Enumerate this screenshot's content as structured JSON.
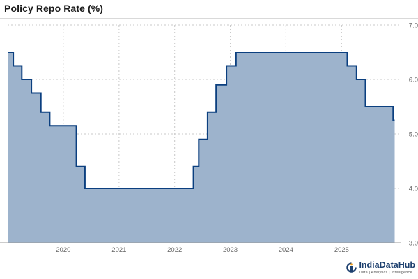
{
  "title": "Policy Repo Rate (%)",
  "brand": {
    "name": "IndiaDataHub",
    "tagline": "Data | Analytics | Intelligence"
  },
  "colors": {
    "line": "#0b3f7f",
    "fill": "#9db3cc",
    "grid": "#c8c8c8",
    "text": "#666666"
  },
  "chart_data": {
    "type": "area",
    "title": "Policy Repo Rate (%)",
    "xlabel": "",
    "ylabel": "",
    "xlim": [
      "2019-01-01",
      "2025-12-31"
    ],
    "ylim": [
      3.0,
      7.0
    ],
    "x_ticks": [
      "2020",
      "2021",
      "2022",
      "2023",
      "2024",
      "2025"
    ],
    "y_ticks": [
      "3.0",
      "4.0",
      "5.0",
      "6.0",
      "7.0"
    ],
    "y_axis_side": "right",
    "grid": true,
    "legend": "none",
    "series": [
      {
        "step": "after",
        "x": [
          "2019-01-01",
          "2019-02-07",
          "2019-04-04",
          "2019-06-06",
          "2019-08-07",
          "2019-10-04",
          "2020-03-27",
          "2020-05-22",
          "2022-05-04",
          "2022-06-08",
          "2022-08-05",
          "2022-09-30",
          "2022-12-07",
          "2023-02-08",
          "2025-02-07",
          "2025-04-09",
          "2025-06-06",
          "2025-12-05",
          "2025-12-15"
        ],
        "y": [
          6.5,
          6.25,
          6.0,
          5.75,
          5.4,
          5.15,
          4.4,
          4.0,
          4.4,
          4.9,
          5.4,
          5.9,
          6.25,
          6.5,
          6.25,
          6.0,
          5.5,
          5.25,
          5.25
        ]
      }
    ]
  }
}
